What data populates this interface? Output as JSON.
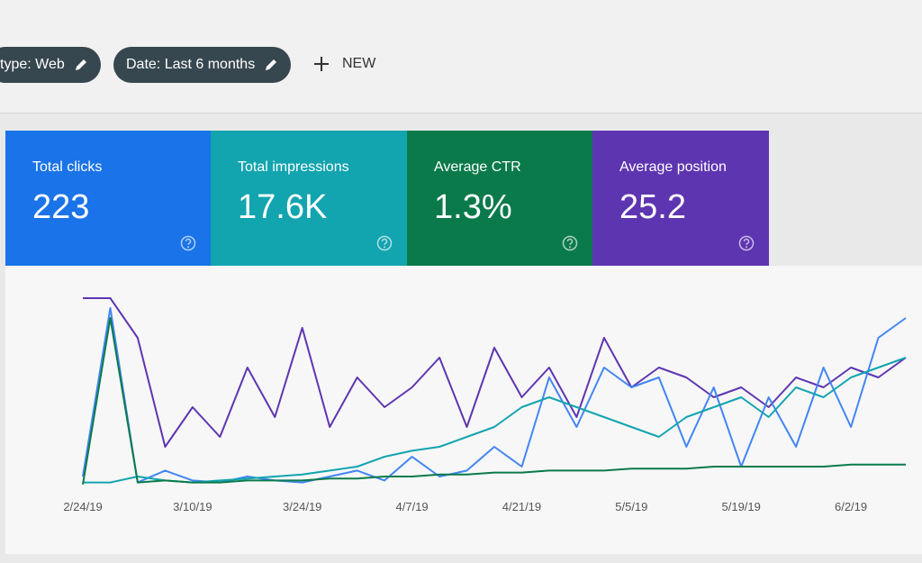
{
  "filters": {
    "chips": [
      "type: Web",
      "Date: Last 6 months"
    ],
    "new_button": "NEW"
  },
  "metrics": [
    {
      "label": "Total clicks",
      "value": "223",
      "color": "#1a73e8"
    },
    {
      "label": "Total impressions",
      "value": "17.6K",
      "color": "#12a4af"
    },
    {
      "label": "Average CTR",
      "value": "1.3%",
      "color": "#0b7a4b"
    },
    {
      "label": "Average position",
      "value": "25.2",
      "color": "#5e35b1"
    }
  ],
  "chart_data": {
    "type": "line",
    "categories": [
      "2/24/19",
      null,
      null,
      null,
      "3/10/19",
      null,
      null,
      null,
      "3/24/19",
      null,
      null,
      null,
      "4/7/19",
      null,
      null,
      null,
      "4/21/19",
      null,
      null,
      null,
      "5/5/19",
      null,
      null,
      null,
      "5/19/19",
      null,
      null,
      null,
      "6/2/19",
      null,
      null
    ],
    "ylim": [
      0,
      100
    ],
    "series": [
      {
        "color": "#5e35b1",
        "values": [
          95,
          95,
          75,
          20,
          40,
          25,
          60,
          35,
          80,
          30,
          55,
          40,
          50,
          65,
          30,
          70,
          45,
          60,
          35,
          75,
          50,
          60,
          55,
          45,
          50,
          40,
          55,
          50,
          60,
          55,
          65
        ]
      },
      {
        "color": "#4285f4",
        "values": [
          5,
          90,
          2,
          8,
          3,
          2,
          5,
          3,
          2,
          5,
          8,
          3,
          15,
          5,
          8,
          20,
          10,
          55,
          30,
          60,
          50,
          55,
          20,
          50,
          10,
          45,
          20,
          60,
          30,
          75,
          85
        ]
      },
      {
        "color": "#12a4af",
        "values": [
          2,
          2,
          5,
          3,
          2,
          3,
          4,
          5,
          6,
          8,
          10,
          15,
          18,
          20,
          25,
          30,
          40,
          45,
          40,
          35,
          30,
          25,
          35,
          40,
          45,
          35,
          50,
          45,
          55,
          60,
          65
        ]
      },
      {
        "color": "#0b7a4b",
        "values": [
          1,
          85,
          2,
          3,
          2,
          2,
          3,
          3,
          3,
          4,
          4,
          5,
          5,
          6,
          6,
          7,
          7,
          8,
          8,
          8,
          9,
          9,
          9,
          10,
          10,
          10,
          10,
          10,
          11,
          11,
          11
        ]
      }
    ]
  }
}
